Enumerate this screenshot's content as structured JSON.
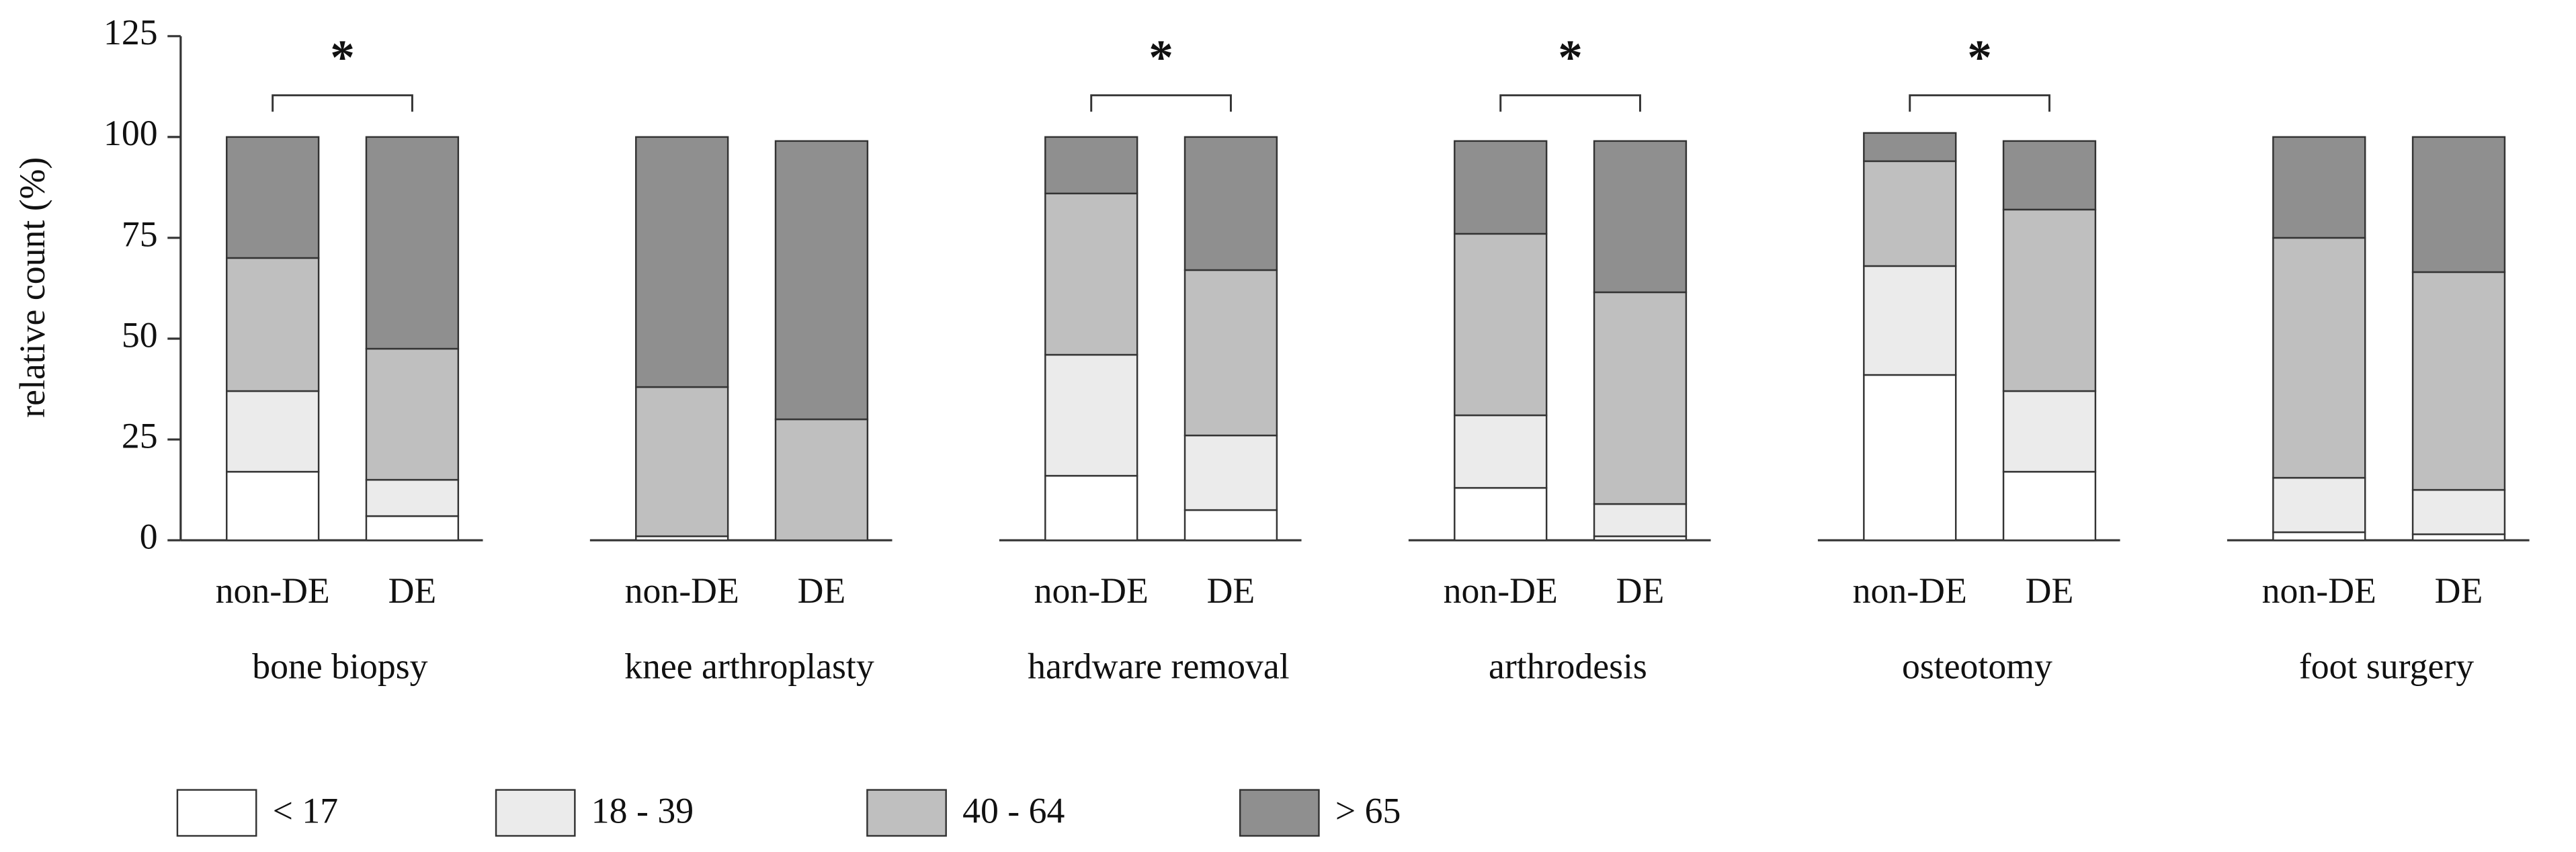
{
  "chart_data": {
    "type": "bar",
    "stacked": true,
    "ylabel": "relative count (%)",
    "ylim": [
      0,
      125
    ],
    "yticks": [
      0,
      25,
      50,
      75,
      100,
      125
    ],
    "series": [
      {
        "name": "< 17",
        "color": "#ffffff"
      },
      {
        "name": "18 - 39",
        "color": "#ebebeb"
      },
      {
        "name": "40 - 64",
        "color": "#bfbfbf"
      },
      {
        "name": "> 65",
        "color": "#8f8f8f"
      }
    ],
    "panels": [
      {
        "title": "bone biopsy",
        "categories": [
          "non-DE",
          "DE"
        ],
        "annotation": "*",
        "values": [
          [
            17,
            6
          ],
          [
            20,
            9
          ],
          [
            33,
            32.5
          ],
          [
            30,
            52.5
          ]
        ]
      },
      {
        "title": "knee arthroplasty",
        "categories": [
          "non-DE",
          "DE"
        ],
        "values": [
          [
            1,
            0
          ],
          [
            0,
            0
          ],
          [
            37,
            30
          ],
          [
            62,
            69
          ]
        ]
      },
      {
        "title": "hardware removal",
        "categories": [
          "non-DE",
          "DE"
        ],
        "annotation": "*",
        "values": [
          [
            16,
            7.5
          ],
          [
            30,
            18.5
          ],
          [
            40,
            41
          ],
          [
            14,
            33
          ]
        ]
      },
      {
        "title": "arthrodesis",
        "categories": [
          "non-DE",
          "DE"
        ],
        "annotation": "*",
        "values": [
          [
            13,
            1
          ],
          [
            18,
            8
          ],
          [
            45,
            52.5
          ],
          [
            23,
            37.5
          ]
        ]
      },
      {
        "title": "osteotomy",
        "categories": [
          "non-DE",
          "DE"
        ],
        "annotation": "*",
        "values": [
          [
            41,
            17
          ],
          [
            27,
            20
          ],
          [
            26,
            45
          ],
          [
            7,
            17
          ]
        ]
      },
      {
        "title": "foot surgery",
        "categories": [
          "non-DE",
          "DE"
        ],
        "values": [
          [
            2,
            1.5
          ],
          [
            13.5,
            11
          ],
          [
            59.5,
            54
          ],
          [
            25,
            33.5
          ]
        ]
      }
    ]
  }
}
